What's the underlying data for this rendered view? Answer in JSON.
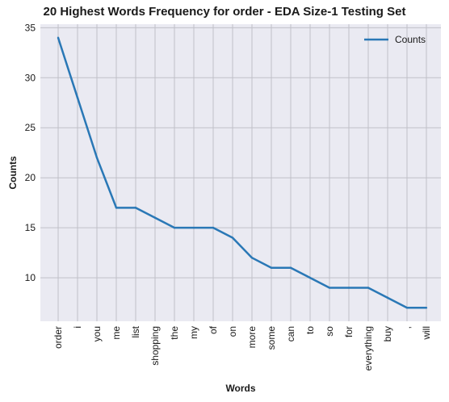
{
  "chart_data": {
    "type": "line",
    "title": "20 Highest Words Frequency for order - EDA Size-1 Testing Set",
    "xlabel": "Words",
    "ylabel": "Counts",
    "categories": [
      "order",
      "i",
      "you",
      "me",
      "list",
      "shopping",
      "the",
      "my",
      "of",
      "on",
      "more",
      "some",
      "can",
      "to",
      "so",
      "for",
      "everything",
      "buy",
      ",",
      "will"
    ],
    "series": [
      {
        "name": "Counts",
        "values": [
          34,
          28,
          22,
          17,
          17,
          16,
          15,
          15,
          15,
          14,
          12,
          11,
          11,
          10,
          9,
          9,
          9,
          8,
          7,
          7
        ],
        "color": "#2a78b6"
      }
    ],
    "yticks": [
      10,
      15,
      20,
      25,
      30,
      35
    ],
    "ylim": [
      5.65,
      35.35
    ],
    "grid": true,
    "legend_position": "top-right",
    "background": "#eaeaf2",
    "grid_color": "#c0c0c8"
  }
}
